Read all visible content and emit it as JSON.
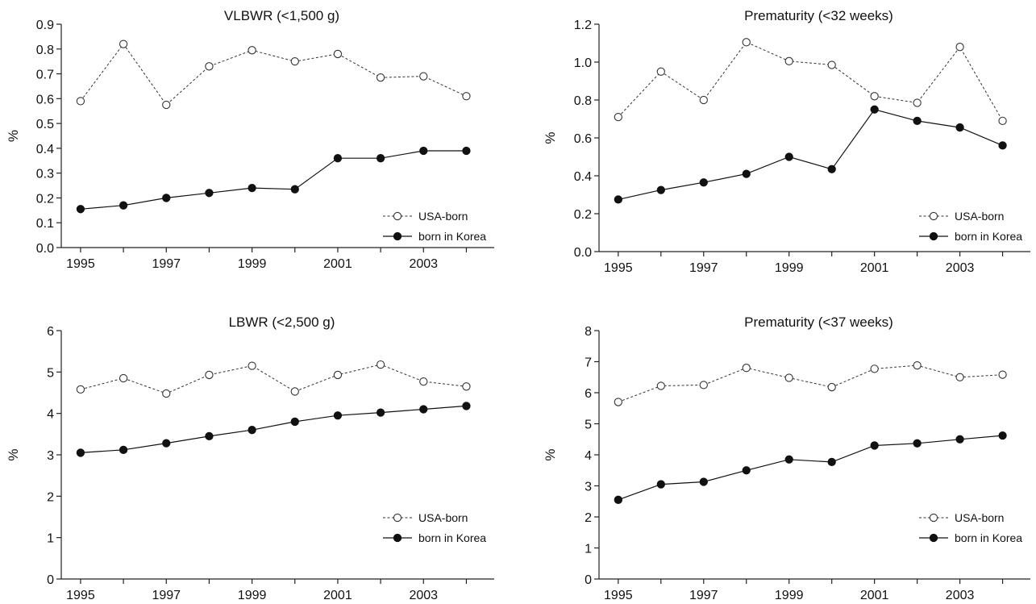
{
  "chart_data": [
    {
      "type": "line",
      "title": "VLBWR (<1,500 g)",
      "ylabel": "%",
      "xlabel": "",
      "x": [
        1995,
        1996,
        1997,
        1998,
        1999,
        2000,
        2001,
        2002,
        2003,
        2004
      ],
      "xticks": [
        "1995",
        "1997",
        "1999",
        "2001",
        "2003"
      ],
      "yticks": [
        "0.0",
        "0.1",
        "0.2",
        "0.3",
        "0.4",
        "0.5",
        "0.6",
        "0.7",
        "0.8",
        "0.9"
      ],
      "ylim": [
        0,
        0.9
      ],
      "series": [
        {
          "name": "USA-born",
          "style": "dotted-open-circle",
          "values": [
            0.59,
            0.82,
            0.575,
            0.73,
            0.795,
            0.75,
            0.78,
            0.685,
            0.69,
            0.61
          ]
        },
        {
          "name": "born in Korea",
          "style": "solid-filled-circle",
          "values": [
            0.155,
            0.17,
            0.2,
            0.22,
            0.24,
            0.235,
            0.36,
            0.36,
            0.39,
            0.39
          ]
        }
      ],
      "legend_position": "bottom-right",
      "grid": false
    },
    {
      "type": "line",
      "title": "Prematurity (<32 weeks)",
      "ylabel": "%",
      "xlabel": "",
      "x": [
        1995,
        1996,
        1997,
        1998,
        1999,
        2000,
        2001,
        2002,
        2003,
        2004
      ],
      "xticks": [
        "1995",
        "1997",
        "1999",
        "2001",
        "2003"
      ],
      "yticks": [
        "0.0",
        "0.2",
        "0.4",
        "0.6",
        "0.8",
        "1.0",
        "1.2"
      ],
      "ylim": [
        0,
        1.2
      ],
      "series": [
        {
          "name": "USA-born",
          "style": "dotted-open-circle",
          "values": [
            0.71,
            0.95,
            0.8,
            1.105,
            1.005,
            0.985,
            0.82,
            0.785,
            1.08,
            0.69
          ]
        },
        {
          "name": "born in Korea",
          "style": "solid-filled-circle",
          "values": [
            0.275,
            0.325,
            0.365,
            0.41,
            0.5,
            0.435,
            0.75,
            0.69,
            0.655,
            0.56
          ]
        }
      ],
      "legend_position": "bottom-right",
      "grid": false
    },
    {
      "type": "line",
      "title": "LBWR (<2,500 g)",
      "ylabel": "%",
      "xlabel": "",
      "x": [
        1995,
        1996,
        1997,
        1998,
        1999,
        2000,
        2001,
        2002,
        2003,
        2004
      ],
      "xticks": [
        "1995",
        "1997",
        "1999",
        "2001",
        "2003"
      ],
      "yticks": [
        "0",
        "1",
        "2",
        "3",
        "4",
        "5",
        "6"
      ],
      "ylim": [
        0,
        6
      ],
      "series": [
        {
          "name": "USA-born",
          "style": "dotted-open-circle",
          "values": [
            4.58,
            4.85,
            4.48,
            4.93,
            5.15,
            4.53,
            4.93,
            5.18,
            4.77,
            4.65
          ]
        },
        {
          "name": "born in Korea",
          "style": "solid-filled-circle",
          "values": [
            3.05,
            3.12,
            3.28,
            3.45,
            3.6,
            3.8,
            3.95,
            4.02,
            4.1,
            4.18
          ]
        }
      ],
      "legend_position": "bottom-right",
      "grid": false
    },
    {
      "type": "line",
      "title": "Prematurity (<37 weeks)",
      "ylabel": "%",
      "xlabel": "",
      "x": [
        1995,
        1996,
        1997,
        1998,
        1999,
        2000,
        2001,
        2002,
        2003,
        2004
      ],
      "xticks": [
        "1995",
        "1997",
        "1999",
        "2001",
        "2003"
      ],
      "yticks": [
        "0",
        "1",
        "2",
        "3",
        "4",
        "5",
        "6",
        "7",
        "8"
      ],
      "ylim": [
        0,
        8
      ],
      "series": [
        {
          "name": "USA-born",
          "style": "dotted-open-circle",
          "values": [
            5.7,
            6.22,
            6.25,
            6.8,
            6.48,
            6.18,
            6.77,
            6.88,
            6.5,
            6.58
          ]
        },
        {
          "name": "born in Korea",
          "style": "solid-filled-circle",
          "values": [
            2.55,
            3.05,
            3.13,
            3.5,
            3.85,
            3.77,
            4.3,
            4.37,
            4.5,
            4.62
          ]
        }
      ],
      "legend_position": "bottom-right",
      "grid": false
    }
  ]
}
